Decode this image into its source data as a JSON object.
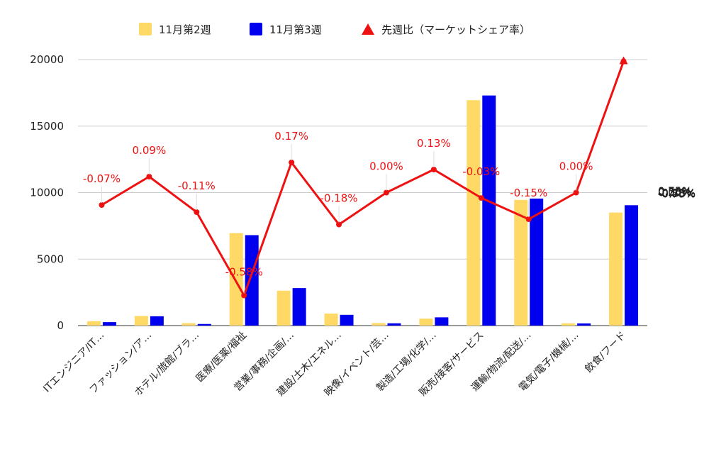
{
  "legend": [
    {
      "label": "11月第2週",
      "color": "#FFD966",
      "marker": "square"
    },
    {
      "label": "11月第3週",
      "color": "#0000EE",
      "marker": "square"
    },
    {
      "label": "先週比（マーケットシェア率）",
      "color": "#EE1111",
      "marker": "triangle"
    }
  ],
  "chart_data": {
    "type": "bar",
    "title": "",
    "legend_position": "top-center",
    "grid": true,
    "categories": [
      "ITエンジニア/IT…",
      "ファッション/ア…",
      "ホテル/旅館/ブラ…",
      "医療/医薬/福祉",
      "営業/事務/企画/…",
      "建設/土木/エネル…",
      "映像/イベント/芸…",
      "製造/工場/化学/…",
      "販売/接客/サービス",
      "運輸/物流/配送/…",
      "電気/電子/機械/…",
      "飲食/フード"
    ],
    "series": [
      {
        "name": "11月第2週",
        "axis": "left",
        "color": "#FFD966",
        "values": [
          330,
          720,
          180,
          6950,
          2620,
          900,
          190,
          520,
          16950,
          9450,
          170,
          8500
        ]
      },
      {
        "name": "11月第3週",
        "axis": "left",
        "color": "#0000EE",
        "values": [
          260,
          700,
          120,
          6800,
          2820,
          810,
          170,
          620,
          17300,
          9550,
          160,
          9050
        ]
      },
      {
        "name": "先週比（マーケットシェア率）",
        "axis": "right",
        "type": "line",
        "color": "#EE1111",
        "values": [
          -0.07,
          0.09,
          -0.11,
          -0.58,
          0.17,
          -0.18,
          0.0,
          0.13,
          -0.03,
          -0.15,
          0.0,
          0.74
        ],
        "labels": [
          "-0.07%",
          "0.09%",
          "-0.11%",
          "-0.58%",
          "0.17%",
          "-0.18%",
          "0.00%",
          "0.13%",
          "-0.03%",
          "-0.15%",
          "0.00%",
          ""
        ]
      }
    ],
    "y_left": {
      "min": 0,
      "max": 20000,
      "ticks": [
        "0",
        "5000",
        "10000",
        "15000",
        "20000"
      ]
    },
    "y_right": {
      "min": -0.75,
      "max": 0.75,
      "ticks": [
        "-0.75%",
        "-0.50%",
        "-0.25%",
        "0.00%",
        "0.25%",
        "0.50%",
        "0.75%"
      ]
    }
  }
}
